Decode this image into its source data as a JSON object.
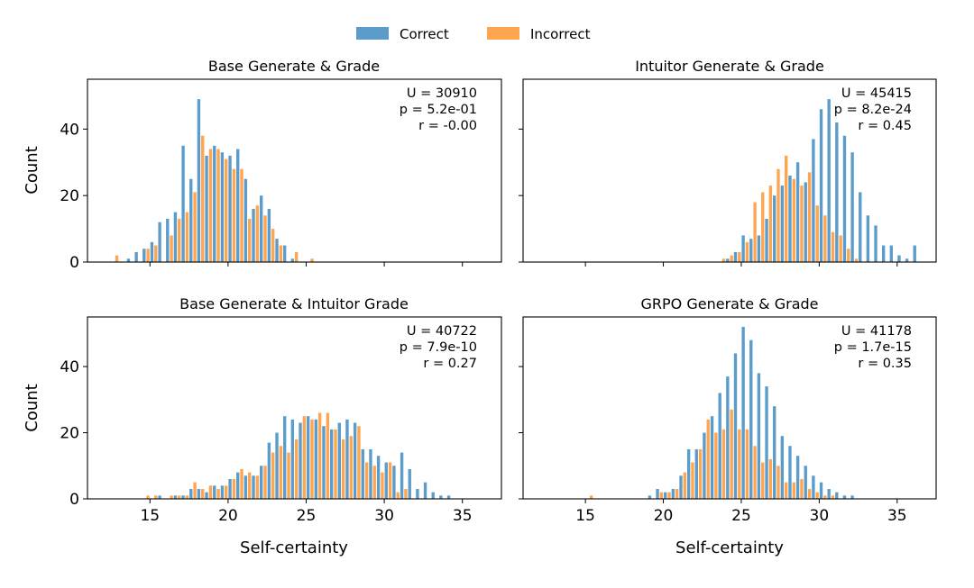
{
  "legend": {
    "items": [
      {
        "label": "Correct",
        "color": "#5b9ccb"
      },
      {
        "label": "Incorrect",
        "color": "#ffa54f"
      }
    ]
  },
  "chart_data": [
    {
      "type": "bar",
      "title": "Base Generate & Grade",
      "xlabel": "",
      "ylabel": "Count",
      "xlim": [
        11,
        37.5
      ],
      "ylim": [
        0,
        55
      ],
      "xticks": [
        15,
        20,
        25,
        30,
        35
      ],
      "yticks": [
        0,
        20,
        40
      ],
      "bin_width": 0.5,
      "stats": [
        "U = 30910",
        "p = 5.2e-01",
        "r = -0.00"
      ],
      "series": [
        {
          "name": "Correct",
          "x": [
            13.75,
            14.25,
            14.75,
            15.25,
            15.75,
            16.25,
            16.75,
            17.25,
            17.75,
            18.25,
            18.75,
            19.25,
            19.75,
            20.25,
            20.75,
            21.25,
            21.75,
            22.25,
            22.75,
            23.25,
            23.75,
            24.25
          ],
          "values": [
            1,
            3,
            4,
            6,
            12,
            13,
            15,
            35,
            25,
            49,
            32,
            35,
            33,
            32,
            34,
            25,
            16,
            20,
            16,
            7,
            5,
            1
          ]
        },
        {
          "name": "Incorrect",
          "x": [
            12.75,
            14.75,
            15.25,
            16.25,
            16.75,
            17.25,
            17.75,
            18.25,
            18.75,
            19.25,
            19.75,
            20.25,
            20.75,
            21.25,
            21.75,
            22.25,
            22.75,
            23.25,
            24.25,
            25.25
          ],
          "values": [
            2,
            4,
            5,
            8,
            13,
            15,
            21,
            38,
            34,
            34,
            31,
            28,
            28,
            13,
            17,
            14,
            10,
            5,
            3,
            1
          ]
        }
      ]
    },
    {
      "type": "bar",
      "title": "Intuitor Generate & Grade",
      "xlabel": "",
      "ylabel": "",
      "xlim": [
        11,
        37.5
      ],
      "ylim": [
        0,
        55
      ],
      "xticks": [
        15,
        20,
        25,
        30,
        35
      ],
      "yticks": [
        0,
        20,
        40
      ],
      "bin_width": 0.5,
      "stats": [
        "U = 45415",
        "p = 8.2e-24",
        "r = 0.45"
      ],
      "series": [
        {
          "name": "Correct",
          "x": [
            24.25,
            24.75,
            25.25,
            25.75,
            26.25,
            26.75,
            27.25,
            27.75,
            28.25,
            28.75,
            29.25,
            29.75,
            30.25,
            30.75,
            31.25,
            31.75,
            32.25,
            32.75,
            33.25,
            33.75,
            34.25,
            34.75,
            35.25,
            35.75,
            36.25
          ],
          "values": [
            1,
            3,
            8,
            7,
            8,
            13,
            20,
            23,
            26,
            30,
            24,
            37,
            46,
            49,
            42,
            38,
            33,
            21,
            14,
            11,
            5,
            5,
            2,
            1,
            5
          ]
        },
        {
          "name": "Incorrect",
          "x": [
            23.75,
            24.25,
            24.75,
            25.25,
            25.75,
            26.25,
            26.75,
            27.25,
            27.75,
            28.25,
            28.75,
            29.25,
            29.75,
            30.25,
            30.75,
            31.25,
            31.75,
            32.25
          ],
          "values": [
            1,
            2,
            3,
            6,
            18,
            21,
            23,
            28,
            32,
            25,
            23,
            27,
            17,
            14,
            9,
            8,
            4,
            1
          ]
        }
      ]
    },
    {
      "type": "bar",
      "title": "Base Generate & Intuitor Grade",
      "xlabel": "Self-certainty",
      "ylabel": "Count",
      "xlim": [
        11,
        37.5
      ],
      "ylim": [
        0,
        55
      ],
      "xticks": [
        15,
        20,
        25,
        30,
        35
      ],
      "yticks": [
        0,
        20,
        40
      ],
      "bin_width": 0.5,
      "stats": [
        "U = 40722",
        "p = 7.9e-10",
        "r = 0.27"
      ],
      "series": [
        {
          "name": "Correct",
          "x": [
            15.75,
            16.75,
            17.25,
            17.75,
            18.25,
            18.75,
            19.25,
            19.75,
            20.25,
            20.75,
            21.25,
            21.75,
            22.25,
            22.75,
            23.25,
            23.75,
            24.25,
            24.75,
            25.25,
            25.75,
            26.25,
            26.75,
            27.25,
            27.75,
            28.25,
            28.75,
            29.25,
            29.75,
            30.25,
            30.75,
            31.25,
            31.75,
            32.25,
            32.75,
            33.25,
            33.75,
            34.25
          ],
          "values": [
            1,
            1,
            1,
            3,
            3,
            2,
            4,
            4,
            6,
            8,
            7,
            7,
            10,
            17,
            20,
            25,
            24,
            23,
            25,
            24,
            22,
            21,
            23,
            24,
            23,
            15,
            15,
            13,
            11,
            10,
            14,
            9,
            3,
            5,
            2,
            1,
            1
          ]
        },
        {
          "name": "Incorrect",
          "x": [
            14.75,
            15.25,
            16.25,
            16.75,
            17.25,
            17.75,
            18.25,
            18.75,
            19.25,
            19.75,
            20.25,
            20.75,
            21.25,
            21.75,
            22.25,
            22.75,
            23.25,
            23.75,
            24.25,
            24.75,
            25.25,
            25.75,
            26.25,
            26.75,
            27.25,
            27.75,
            28.25,
            28.75,
            29.25,
            29.75,
            30.25,
            30.75,
            31.25
          ],
          "values": [
            1,
            1,
            1,
            1,
            1,
            5,
            3,
            4,
            3,
            4,
            6,
            9,
            8,
            7,
            10,
            14,
            16,
            14,
            18,
            25,
            24,
            26,
            26,
            21,
            18,
            19,
            22,
            11,
            10,
            8,
            11,
            2,
            3
          ]
        }
      ]
    },
    {
      "type": "bar",
      "title": "GRPO Generate & Grade",
      "xlabel": "Self-certainty",
      "ylabel": "",
      "xlim": [
        11,
        37.5
      ],
      "ylim": [
        0,
        55
      ],
      "xticks": [
        15,
        20,
        25,
        30,
        35
      ],
      "yticks": [
        0,
        20,
        40
      ],
      "bin_width": 0.5,
      "stats": [
        "U = 41178",
        "p = 1.7e-15",
        "r = 0.35"
      ],
      "series": [
        {
          "name": "Correct",
          "x": [
            19.25,
            19.75,
            20.25,
            20.75,
            21.25,
            21.75,
            22.25,
            22.75,
            23.25,
            23.75,
            24.25,
            24.75,
            25.25,
            25.75,
            26.25,
            26.75,
            27.25,
            27.75,
            28.25,
            28.75,
            29.25,
            29.75,
            30.25,
            30.75,
            31.25,
            31.75,
            32.25
          ],
          "values": [
            1,
            3,
            2,
            3,
            7,
            15,
            15,
            20,
            25,
            32,
            37,
            44,
            52,
            48,
            38,
            34,
            28,
            19,
            16,
            13,
            10,
            7,
            5,
            3,
            2,
            1,
            1
          ]
        },
        {
          "name": "Incorrect",
          "x": [
            15.25,
            19.75,
            20.25,
            20.75,
            21.25,
            21.75,
            22.25,
            22.75,
            23.25,
            23.75,
            24.25,
            24.75,
            25.25,
            25.75,
            26.25,
            26.75,
            27.25,
            27.75,
            28.25,
            28.75,
            29.25,
            29.75,
            30.25,
            30.75
          ],
          "values": [
            1,
            2,
            2,
            3,
            8,
            11,
            15,
            24,
            20,
            21,
            27,
            21,
            21,
            16,
            11,
            12,
            10,
            5,
            5,
            6,
            3,
            2,
            1,
            1
          ]
        }
      ]
    }
  ]
}
